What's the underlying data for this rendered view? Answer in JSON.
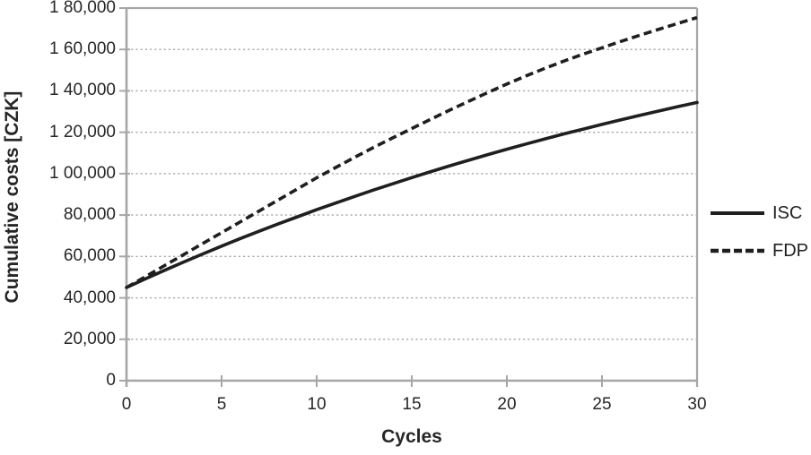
{
  "chart_data": {
    "type": "line",
    "title": "",
    "xlabel": "Cycles",
    "ylabel": "Cumulative costs [CZK]",
    "xlim": [
      0,
      30
    ],
    "ylim": [
      0,
      180000
    ],
    "x_ticks": [
      0,
      5,
      10,
      15,
      20,
      25,
      30
    ],
    "y_ticks": [
      {
        "value": 0,
        "label": "0"
      },
      {
        "value": 20000,
        "label": "20,000"
      },
      {
        "value": 40000,
        "label": "40,000"
      },
      {
        "value": 60000,
        "label": "60,000"
      },
      {
        "value": 80000,
        "label": "80,000"
      },
      {
        "value": 100000,
        "label": "1 00,000"
      },
      {
        "value": 120000,
        "label": "1 20,000"
      },
      {
        "value": 140000,
        "label": "1 40,000"
      },
      {
        "value": 160000,
        "label": "1 60,000"
      },
      {
        "value": 180000,
        "label": "1 80,000"
      }
    ],
    "grid": "horizontal-dotted",
    "legend_position": "right-center",
    "axis_color": "#a6a6a6",
    "text_color": "#262626",
    "x": [
      0,
      1,
      2,
      3,
      4,
      5,
      6,
      7,
      8,
      9,
      10,
      11,
      12,
      13,
      14,
      15,
      16,
      17,
      18,
      19,
      20,
      21,
      22,
      23,
      24,
      25,
      26,
      27,
      28,
      29,
      30
    ],
    "series": [
      {
        "name": "ISC",
        "line_style": "solid",
        "color": "#1f1f1f",
        "values": [
          45000,
          49200,
          53300,
          57300,
          61200,
          65000,
          68700,
          72300,
          75800,
          79200,
          82600,
          85800,
          89000,
          92100,
          95100,
          98100,
          101000,
          103800,
          106500,
          109200,
          111800,
          114300,
          116800,
          119200,
          121500,
          123800,
          126000,
          128200,
          130300,
          132400,
          134400
        ]
      },
      {
        "name": "FDP",
        "line_style": "dashed",
        "color": "#1f1f1f",
        "values": [
          45000,
          50300,
          55600,
          60900,
          66200,
          71500,
          76800,
          82100,
          87400,
          92700,
          98000,
          103000,
          107900,
          112700,
          117300,
          121800,
          126300,
          130700,
          135000,
          139200,
          143300,
          147200,
          150900,
          154400,
          157700,
          160800,
          163900,
          166900,
          169800,
          172600,
          175400
        ]
      }
    ]
  }
}
